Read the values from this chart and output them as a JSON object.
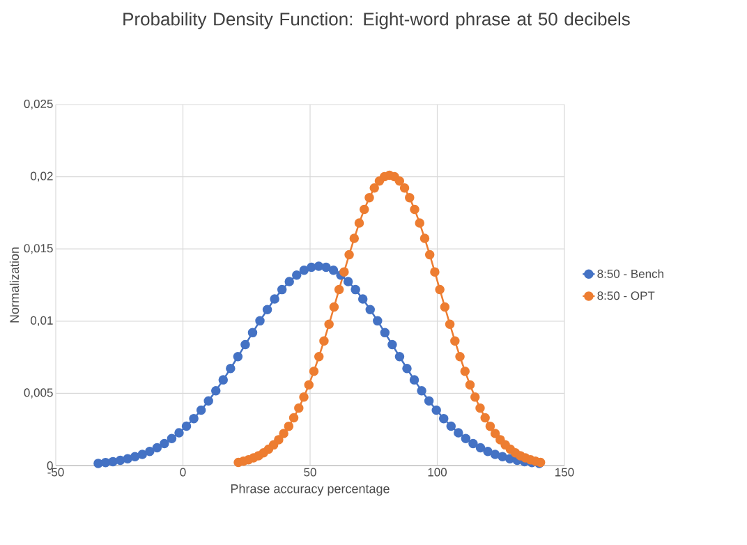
{
  "chart_data": {
    "type": "line",
    "title": "Probability Density Function: Eight-word phrase at 50 decibels",
    "xlabel": "Phrase accuracy percentage",
    "ylabel": "Normalization",
    "xlim": [
      -50,
      150
    ],
    "xticks": [
      -50,
      0,
      50,
      100,
      150
    ],
    "ylim": [
      0,
      0.025
    ],
    "yticks": [
      {
        "value": 0,
        "label": "0"
      },
      {
        "value": 0.005,
        "label": "0,005"
      },
      {
        "value": 0.01,
        "label": "0,01"
      },
      {
        "value": 0.015,
        "label": "0,015"
      },
      {
        "value": 0.02,
        "label": "0,02"
      },
      {
        "value": 0.025,
        "label": "0,025"
      }
    ],
    "grid": true,
    "legend": "right",
    "marker": "circle",
    "line_style": "solid",
    "series": [
      {
        "name": "8:50 - Bench",
        "color": "#4472c4",
        "x": [
          -33.3,
          -30.41,
          -27.52,
          -24.63,
          -21.74,
          -18.85,
          -15.96,
          -13.07,
          -10.18,
          -7.29,
          -4.4,
          -1.51,
          1.38,
          4.27,
          7.16,
          10.05,
          12.94,
          15.83,
          18.72,
          21.61,
          24.5,
          27.39,
          30.28,
          33.17,
          36.06,
          38.95,
          41.84,
          44.73,
          47.62,
          50.51,
          53.4,
          56.29,
          59.18,
          62.07,
          64.96,
          67.85,
          70.74,
          73.63,
          76.52,
          79.41,
          82.3,
          85.19,
          88.08,
          90.97,
          93.86,
          96.75,
          99.64,
          102.53,
          105.42,
          108.31,
          111.2,
          114.09,
          116.98,
          119.87,
          122.76,
          125.65,
          128.54,
          131.43,
          134.32,
          137.21,
          140.1
        ],
        "values": [
          0.00015,
          0.00021,
          0.00027,
          0.00036,
          0.00047,
          0.00061,
          0.00077,
          0.00098,
          0.00123,
          0.00152,
          0.00187,
          0.00227,
          0.00273,
          0.00325,
          0.00384,
          0.00448,
          0.00518,
          0.00593,
          0.00672,
          0.00754,
          0.00837,
          0.0092,
          0.01002,
          0.0108,
          0.01153,
          0.01218,
          0.01274,
          0.01319,
          0.01353,
          0.01373,
          0.0138,
          0.01373,
          0.01353,
          0.01319,
          0.01274,
          0.01218,
          0.01153,
          0.0108,
          0.01002,
          0.0092,
          0.00837,
          0.00754,
          0.00672,
          0.00593,
          0.00518,
          0.00448,
          0.00384,
          0.00325,
          0.00273,
          0.00227,
          0.00187,
          0.00152,
          0.00123,
          0.00098,
          0.00077,
          0.00061,
          0.00047,
          0.00036,
          0.00027,
          0.00021,
          0.00015
        ]
      },
      {
        "name": "8:50 - OPT",
        "color": "#ed7d31",
        "x": [
          21.8,
          23.78,
          25.76,
          27.74,
          29.72,
          31.7,
          33.68,
          35.66,
          37.64,
          39.62,
          41.6,
          43.58,
          45.56,
          47.54,
          49.52,
          51.5,
          53.48,
          55.46,
          57.44,
          59.42,
          61.4,
          63.38,
          65.36,
          67.34,
          69.32,
          71.3,
          73.28,
          75.26,
          77.24,
          79.22,
          81.2,
          83.18,
          85.16,
          87.14,
          89.12,
          91.1,
          93.08,
          95.06,
          97.04,
          99.02,
          101.0,
          102.98,
          104.96,
          106.94,
          108.92,
          110.9,
          112.88,
          114.86,
          116.84,
          118.82,
          120.8,
          122.78,
          124.76,
          126.74,
          128.72,
          130.7,
          132.68,
          134.66,
          136.64,
          138.62,
          140.6
        ],
        "values": [
          0.00022,
          0.0003,
          0.0004,
          0.00053,
          0.00068,
          0.00088,
          0.00113,
          0.00143,
          0.00179,
          0.00222,
          0.00272,
          0.00331,
          0.00398,
          0.00474,
          0.00559,
          0.00653,
          0.00754,
          0.00863,
          0.00978,
          0.01098,
          0.01219,
          0.01341,
          0.0146,
          0.01573,
          0.01679,
          0.01774,
          0.01855,
          0.01922,
          0.0197,
          0.02,
          0.0201,
          0.02,
          0.0197,
          0.01922,
          0.01855,
          0.01774,
          0.01679,
          0.01573,
          0.0146,
          0.01341,
          0.01219,
          0.01098,
          0.00978,
          0.00863,
          0.00754,
          0.00653,
          0.00559,
          0.00474,
          0.00398,
          0.00331,
          0.00272,
          0.00222,
          0.00179,
          0.00143,
          0.00113,
          0.00088,
          0.00068,
          0.00053,
          0.0004,
          0.0003,
          0.00022
        ]
      }
    ]
  }
}
